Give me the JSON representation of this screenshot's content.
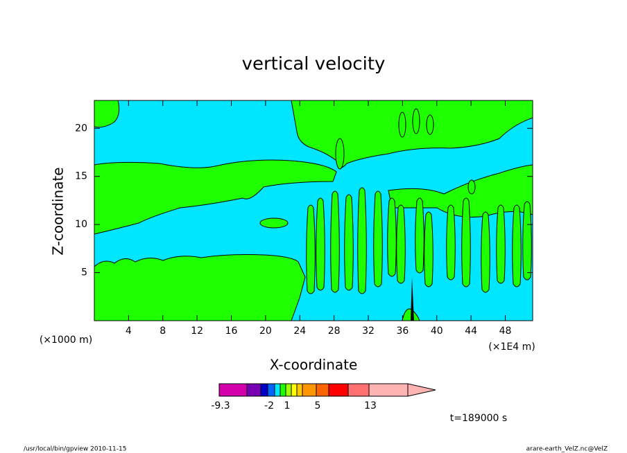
{
  "chart_data": {
    "type": "contour",
    "title": "vertical velocity",
    "xlabel": "X-coordinate",
    "ylabel": "Z-coordinate",
    "x_unit_label": "(×1E4 m)",
    "y_unit_label": "(×1000 m)",
    "xlim": [
      0,
      51.2
    ],
    "ylim": [
      0,
      22.9
    ],
    "xticks": [
      4,
      8,
      12,
      16,
      20,
      24,
      28,
      32,
      36,
      40,
      44,
      48
    ],
    "yticks": [
      5,
      10,
      15,
      20
    ],
    "colorbar": {
      "colors": [
        "#d100aa",
        "#7800b4",
        "#0000c8",
        "#0064ff",
        "#00e6ff",
        "#1eff00",
        "#a0ff00",
        "#ffff00",
        "#ffc800",
        "#ff9600",
        "#ff6400",
        "#ff0000",
        "#ff7070",
        "#ffb4b4"
      ],
      "ticks": [
        -9.3,
        -2,
        1,
        5,
        13
      ]
    },
    "time_label": "t=189000 s",
    "footer_left": "/usr/local/bin/gpview  2010-11-15",
    "footer_right": "arare-earth_VelZ.nc@VelZ"
  }
}
